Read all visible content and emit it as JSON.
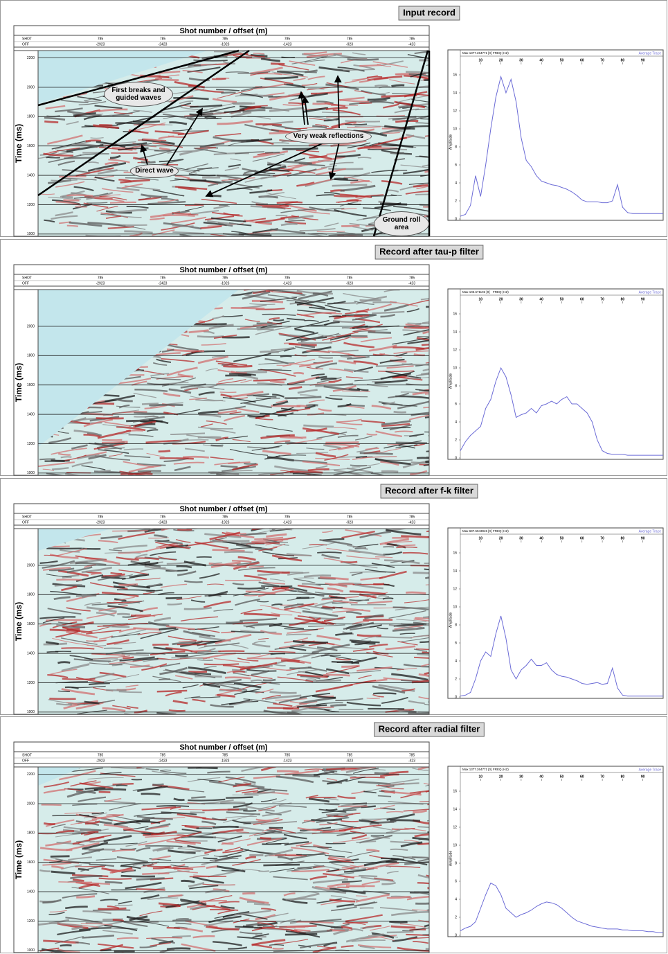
{
  "chart_data": [
    {
      "type": "line",
      "title": "Input record",
      "section": {
        "title": "Shot number / offset (m)",
        "row_labels": [
          "SHOT",
          "OFF"
        ],
        "shots": [
          785,
          785,
          785,
          785,
          785,
          785
        ],
        "offsets": [
          -2923,
          -2423,
          -1923,
          -1423,
          -923,
          -423
        ],
        "y_label": "Time (ms)",
        "ylim": [
          985,
          2250
        ],
        "yticks": [
          1000,
          1200,
          1400,
          1600,
          1800,
          2000,
          2200
        ]
      },
      "annotations": [
        "First breaks and guided waves",
        "Direct wave",
        "Very weak reflections",
        "Ground roll area"
      ],
      "max_label": "Max 1377.264771 [0]",
      "x_label": "FREQ (HZ)",
      "y_label": "Amplitude",
      "x": [
        0,
        2.5,
        5,
        7.5,
        10,
        12.5,
        15,
        17.5,
        20,
        22.5,
        25,
        27.5,
        30,
        32.5,
        35,
        37.5,
        40,
        42.5,
        45,
        47.5,
        50,
        52.5,
        55,
        57.5,
        60,
        62.5,
        65,
        67.5,
        70,
        72.5,
        75,
        77.5,
        80,
        82.5,
        85,
        87.5,
        90,
        92.5,
        95,
        97.5,
        100
      ],
      "series": [
        {
          "name": "Average Trace",
          "color": "#6b6bd6",
          "values": [
            0.3,
            0.5,
            1.5,
            4.8,
            2.5,
            6,
            10,
            13.5,
            15.8,
            14,
            15.5,
            13,
            9,
            6.5,
            5.8,
            4.8,
            4.2,
            4,
            3.8,
            3.7,
            3.5,
            3.3,
            3,
            2.6,
            2.1,
            1.9,
            1.9,
            1.9,
            1.8,
            1.8,
            2,
            3.8,
            1.3,
            0.7,
            0.6,
            0.6,
            0.6,
            0.6,
            0.6,
            0.6,
            0.6
          ]
        }
      ],
      "xlim": [
        0,
        100
      ],
      "xticks": [
        10,
        20,
        30,
        40,
        50,
        60,
        70,
        80,
        90
      ],
      "ylim": [
        0,
        17
      ],
      "yticks": [
        0,
        2,
        4,
        6,
        8,
        10,
        12,
        14,
        16
      ]
    },
    {
      "type": "line",
      "title": "Record after tau-p filter",
      "section": {
        "title": "Shot number / offset (m)",
        "row_labels": [
          "SHOT",
          "OFF"
        ],
        "shots": [
          785,
          785,
          785,
          785,
          785,
          785
        ],
        "offsets": [
          -2923,
          -2423,
          -1923,
          -1423,
          -923,
          -423
        ],
        "y_label": "Time (ms)",
        "ylim": [
          985,
          2250
        ],
        "yticks": [
          1000,
          1200,
          1400,
          1600,
          1800,
          2000
        ]
      },
      "max_label": "Max 103.671102 [0]",
      "x_label": "FREQ (HZ)",
      "y_label": "Amplitude",
      "x": [
        0,
        2.5,
        5,
        7.5,
        10,
        12.5,
        15,
        17.5,
        20,
        22.5,
        25,
        27.5,
        30,
        32.5,
        35,
        37.5,
        40,
        42.5,
        45,
        47.5,
        50,
        52.5,
        55,
        57.5,
        60,
        62.5,
        65,
        67.5,
        70,
        72.5,
        75,
        77.5,
        80,
        82.5,
        85,
        87.5,
        90,
        92.5,
        95,
        97.5,
        100
      ],
      "series": [
        {
          "name": "Average Trace",
          "color": "#6b6bd6",
          "values": [
            0.8,
            1.8,
            2.5,
            3,
            3.5,
            5.5,
            6.5,
            8.5,
            10,
            9,
            7,
            4.5,
            4.8,
            5,
            5.5,
            5,
            5.8,
            6,
            6.3,
            6,
            6.5,
            6.8,
            6,
            6,
            5.5,
            5,
            4,
            2,
            0.8,
            0.5,
            0.4,
            0.4,
            0.4,
            0.3,
            0.3,
            0.3,
            0.3,
            0.3,
            0.3,
            0.3,
            0.3
          ]
        }
      ],
      "xlim": [
        0,
        100
      ],
      "xticks": [
        10,
        20,
        30,
        40,
        50,
        60,
        70,
        80,
        90
      ],
      "ylim": [
        0,
        17
      ],
      "yticks": [
        0,
        2,
        4,
        6,
        8,
        10,
        12,
        14,
        16
      ]
    },
    {
      "type": "line",
      "title": "Record after f-k filter",
      "section": {
        "title": "Shot number / offset (m)",
        "row_labels": [
          "SHOT",
          "OFF"
        ],
        "shots": [
          785,
          785,
          785,
          785,
          785,
          785
        ],
        "offsets": [
          -2923,
          -2423,
          -1923,
          -1423,
          -923,
          -423
        ],
        "y_label": "Time (ms)",
        "ylim": [
          985,
          2250
        ],
        "yticks": [
          1000,
          1200,
          1400,
          1600,
          1800,
          2000
        ]
      },
      "max_label": "Max 697.5943945 [0]",
      "x_label": "FREQ (HZ)",
      "y_label": "Amplitude",
      "x": [
        0,
        2.5,
        5,
        7.5,
        10,
        12.5,
        15,
        17.5,
        20,
        22.5,
        25,
        27.5,
        30,
        32.5,
        35,
        37.5,
        40,
        42.5,
        45,
        47.5,
        50,
        52.5,
        55,
        57.5,
        60,
        62.5,
        65,
        67.5,
        70,
        72.5,
        75,
        77.5,
        80,
        82.5,
        85,
        87.5,
        90,
        92.5,
        95,
        97.5,
        100
      ],
      "series": [
        {
          "name": "Average Trace",
          "color": "#6b6bd6",
          "values": [
            0.1,
            0.2,
            0.5,
            2,
            4,
            5,
            4.5,
            7,
            9,
            6.5,
            3,
            2,
            3,
            3.5,
            4.2,
            3.5,
            3.5,
            3.8,
            3,
            2.5,
            2.3,
            2.2,
            2,
            1.8,
            1.5,
            1.4,
            1.5,
            1.6,
            1.4,
            1.5,
            3.2,
            1,
            0.2,
            0.1,
            0.1,
            0.1,
            0.1,
            0.1,
            0.1,
            0.1,
            0.1
          ]
        }
      ],
      "xlim": [
        0,
        100
      ],
      "xticks": [
        10,
        20,
        30,
        40,
        50,
        60,
        70,
        80,
        90
      ],
      "ylim": [
        0,
        17
      ],
      "yticks": [
        0,
        2,
        4,
        6,
        8,
        10,
        12,
        14,
        16
      ]
    },
    {
      "type": "line",
      "title": "Record after radial filter",
      "section": {
        "title": "Shot number / offset (m)",
        "row_labels": [
          "SHOT",
          "OFF"
        ],
        "shots": [
          785,
          785,
          785,
          785,
          785,
          785
        ],
        "offsets": [
          -2923,
          -2423,
          -1923,
          -1423,
          -923,
          -423
        ],
        "y_label": "Time (ms)",
        "ylim": [
          985,
          2250
        ],
        "yticks": [
          1000,
          1200,
          1400,
          1600,
          1800,
          2000,
          2200
        ]
      },
      "max_label": "Max 1377.264771 [0]",
      "x_label": "FREQ (HZ)",
      "y_label": "Amplitude",
      "x": [
        0,
        2.5,
        5,
        7.5,
        10,
        12.5,
        15,
        17.5,
        20,
        22.5,
        25,
        27.5,
        30,
        32.5,
        35,
        37.5,
        40,
        42.5,
        45,
        47.5,
        50,
        52.5,
        55,
        57.5,
        60,
        62.5,
        65,
        67.5,
        70,
        72.5,
        75,
        77.5,
        80,
        82.5,
        85,
        87.5,
        90,
        92.5,
        95,
        97.5,
        100
      ],
      "series": [
        {
          "name": "Average Trace",
          "color": "#6b6bd6",
          "values": [
            0.5,
            0.8,
            1,
            1.5,
            3,
            4.5,
            5.8,
            5.5,
            4.5,
            3,
            2.5,
            2,
            2.3,
            2.5,
            2.8,
            3.2,
            3.5,
            3.7,
            3.6,
            3.4,
            3,
            2.5,
            2,
            1.6,
            1.4,
            1.2,
            1,
            0.9,
            0.8,
            0.7,
            0.7,
            0.7,
            0.6,
            0.6,
            0.5,
            0.5,
            0.5,
            0.4,
            0.4,
            0.3,
            0.3
          ]
        }
      ],
      "xlim": [
        0,
        100
      ],
      "xticks": [
        10,
        20,
        30,
        40,
        50,
        60,
        70,
        80,
        90
      ],
      "ylim": [
        0,
        17
      ],
      "yticks": [
        0,
        2,
        4,
        6,
        8,
        10,
        12,
        14,
        16
      ]
    }
  ]
}
